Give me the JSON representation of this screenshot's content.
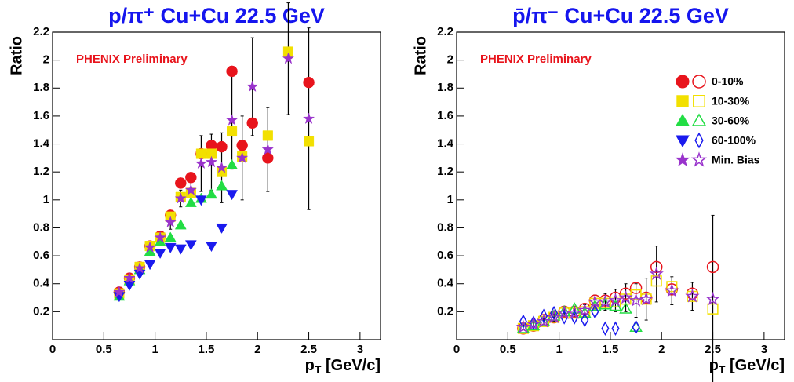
{
  "chart_data": [
    {
      "type": "scatter",
      "title": "p/π⁺ Cu+Cu 22.5 GeV",
      "y_label": "Ratio",
      "x_label": [
        "p",
        "T",
        " [GeV/c]"
      ],
      "annotation": "PHENIX Preliminary",
      "x": [
        0.65,
        0.75,
        0.85,
        0.95,
        1.05,
        1.15,
        1.25,
        1.35,
        1.45,
        1.55,
        1.65,
        1.75,
        1.85,
        1.95,
        2.1,
        2.3,
        2.5
      ],
      "xlim": [
        0,
        3.2
      ],
      "ylim": [
        0,
        2.2
      ],
      "xticks": [
        0,
        0.5,
        1,
        1.5,
        2,
        2.5,
        3
      ],
      "yticks": [
        0.2,
        0.4,
        0.6,
        0.8,
        1,
        1.2,
        1.4,
        1.6,
        1.8,
        2,
        2.2
      ],
      "series": [
        {
          "marker": "circle",
          "filled": true,
          "color": "#e8141c",
          "values": [
            0.34,
            0.44,
            0.52,
            0.67,
            0.74,
            0.89,
            1.12,
            1.16,
            1.33,
            1.39,
            1.38,
            1.92,
            1.39,
            1.55,
            1.3,
            null,
            1.84
          ]
        },
        {
          "marker": "square",
          "filled": true,
          "color": "#f2e000",
          "values": [
            0.33,
            0.43,
            0.52,
            0.67,
            0.73,
            0.88,
            1.02,
            1.05,
            1.33,
            1.33,
            1.2,
            1.49,
            1.31,
            null,
            1.46,
            2.06,
            1.42
          ]
        },
        {
          "marker": "triangle-up",
          "filled": true,
          "color": "#22dd44",
          "values": [
            0.31,
            0.42,
            0.5,
            0.63,
            0.7,
            0.73,
            0.82,
            0.98,
            1.01,
            1.04,
            1.1,
            1.25,
            null,
            null,
            null,
            null,
            null
          ]
        },
        {
          "marker": "triangle-down",
          "filled": true,
          "color": "#1a1aee",
          "values": [
            0.31,
            0.39,
            0.47,
            0.54,
            0.62,
            0.66,
            0.65,
            0.68,
            1.0,
            0.67,
            0.8,
            1.04,
            null,
            null,
            null,
            null,
            null
          ]
        },
        {
          "marker": "star",
          "filled": true,
          "color": "#9933cc",
          "values": [
            0.34,
            0.44,
            0.51,
            0.66,
            0.73,
            0.84,
            1.01,
            1.07,
            1.26,
            1.27,
            1.23,
            1.57,
            1.3,
            1.81,
            1.36,
            2.01,
            1.58
          ],
          "errors": [
            0.02,
            0.02,
            0.03,
            0.03,
            0.04,
            0.05,
            0.06,
            0.08,
            0.2,
            0.2,
            0.25,
            0.35,
            0.3,
            0.35,
            0.3,
            0.4,
            0.65
          ]
        }
      ]
    },
    {
      "type": "scatter",
      "title": "p̄/π⁻ Cu+Cu 22.5 GeV",
      "y_label": "Ratio",
      "x_label": [
        "p",
        "T",
        " [GeV/c]"
      ],
      "annotation": "PHENIX Preliminary",
      "legend": "top-right",
      "x": [
        0.65,
        0.75,
        0.85,
        0.95,
        1.05,
        1.15,
        1.25,
        1.35,
        1.45,
        1.55,
        1.65,
        1.75,
        1.85,
        1.95,
        2.1,
        2.3,
        2.5
      ],
      "xlim": [
        0,
        3.2
      ],
      "ylim": [
        0,
        2.2
      ],
      "xticks": [
        0,
        0.5,
        1,
        1.5,
        2,
        2.5,
        3
      ],
      "yticks": [
        0.2,
        0.4,
        0.6,
        0.8,
        1,
        1.2,
        1.4,
        1.6,
        1.8,
        2,
        2.2
      ],
      "series": [
        {
          "name": "0-10%",
          "marker": "circle",
          "filled": false,
          "color": "#e8141c",
          "values": [
            0.08,
            0.1,
            0.14,
            0.16,
            0.2,
            0.2,
            0.22,
            0.28,
            0.28,
            0.3,
            0.33,
            0.37,
            0.3,
            0.52,
            0.36,
            0.33,
            0.52
          ]
        },
        {
          "name": "10-30%",
          "marker": "square",
          "filled": false,
          "color": "#f2e000",
          "values": [
            0.08,
            0.1,
            0.13,
            0.16,
            0.19,
            0.19,
            0.2,
            0.26,
            0.26,
            0.27,
            0.29,
            0.32,
            0.29,
            0.42,
            0.38,
            0.31,
            0.22
          ]
        },
        {
          "name": "30-60%",
          "marker": "triangle-up",
          "filled": false,
          "color": "#22dd44",
          "values": [
            0.08,
            0.1,
            0.13,
            0.17,
            0.2,
            0.22,
            0.19,
            0.24,
            0.25,
            0.24,
            0.22,
            0.09,
            null,
            null,
            null,
            null,
            null
          ]
        },
        {
          "name": "60-100%",
          "marker": "diamond",
          "filled": false,
          "color": "#1a1aee",
          "values": [
            0.13,
            0.12,
            0.17,
            0.19,
            0.16,
            0.16,
            0.14,
            0.2,
            0.08,
            0.08,
            null,
            0.09,
            null,
            null,
            null,
            null,
            null
          ]
        },
        {
          "name": "Min. Bias",
          "marker": "star",
          "filled": false,
          "color": "#9933cc",
          "values": [
            0.09,
            0.11,
            0.13,
            0.16,
            0.19,
            0.19,
            0.21,
            0.27,
            0.27,
            0.28,
            0.3,
            0.28,
            0.29,
            0.47,
            0.35,
            0.31,
            0.29
          ],
          "errors": [
            0.02,
            0.02,
            0.02,
            0.03,
            0.03,
            0.03,
            0.04,
            0.05,
            0.06,
            0.08,
            0.1,
            0.12,
            0.15,
            0.2,
            0.1,
            0.1,
            0.6
          ]
        }
      ]
    }
  ]
}
